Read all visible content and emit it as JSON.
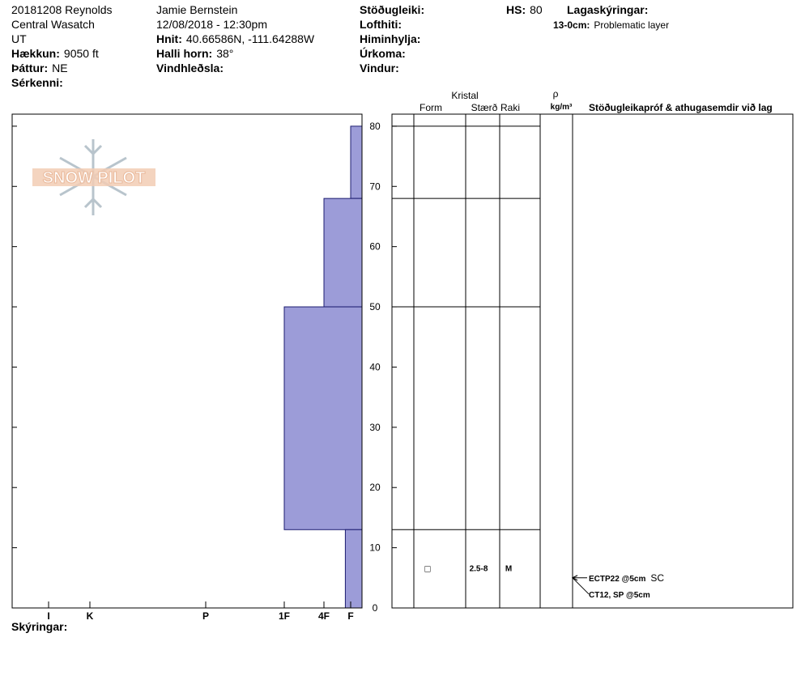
{
  "header": {
    "col1": [
      {
        "value": "20181208 Reynolds"
      },
      {
        "value": "Central Wasatch"
      },
      {
        "value": "UT"
      },
      {
        "label": "Hækkun:",
        "value": "9050 ft"
      },
      {
        "label": "Þáttur:",
        "value": "NE"
      },
      {
        "label": "Sérkenni:"
      }
    ],
    "col2": [
      {
        "value": "Jamie Bernstein"
      },
      {
        "value": "12/08/2018 - 12:30pm"
      },
      {
        "label": "Hnit:",
        "value": "40.66586N, -111.64288W"
      },
      {
        "label": "Halli horn:",
        "value": "38°"
      },
      {
        "label": "Vindhleðsla:"
      }
    ],
    "col3": [
      {
        "label": "Stöðugleiki:"
      },
      {
        "label": "Lofthiti:"
      },
      {
        "label": "Himinhylja:"
      },
      {
        "label": "Úrkoma:"
      },
      {
        "label": "Vindur:"
      }
    ],
    "hs": {
      "label": "HS:",
      "value": 80
    },
    "notes_title": "Lagaskýringar:",
    "notes": [
      {
        "label": "13-0cm:",
        "value": "Problematic layer"
      }
    ],
    "remarks": "Skýringar:",
    "logo": "SNOW PILOT"
  },
  "table_headers": {
    "crystal": "Kristal",
    "form": "Form",
    "size": "Stærð",
    "moisture": "Raki",
    "density": "ρ",
    "density_unit": "kg/m³",
    "tests": "Stöðugleikapróf & athugasemdir við lag"
  },
  "chart_data": {
    "type": "snow-profile",
    "ylim": [
      0,
      82
    ],
    "yticks": [
      0,
      10,
      20,
      30,
      40,
      50,
      60,
      70,
      80
    ],
    "xlim": [
      0,
      7
    ],
    "xticks": [
      {
        "value": 1,
        "label": "F"
      },
      {
        "value": 2,
        "label": "4F"
      },
      {
        "value": 3,
        "label": "1F"
      },
      {
        "value": 4,
        "label": "P"
      },
      {
        "value": 5,
        "label": "K"
      },
      {
        "value": 6,
        "label": "I"
      }
    ],
    "color": "#9c9cd8",
    "layers": [
      {
        "top": 80,
        "bottom": 68,
        "hardness": 1
      },
      {
        "top": 68,
        "bottom": 50,
        "hardness": 2
      },
      {
        "top": 50,
        "bottom": 13,
        "hardness": 3
      },
      {
        "top": 13,
        "bottom": 0,
        "hardness": 1.2,
        "form": "□",
        "size": "2.5-8",
        "moisture": "M"
      }
    ],
    "tests": [
      {
        "label": "ECTP22 @5cm",
        "shear": "SC",
        "depth": 5
      },
      {
        "label": "CT12, SP @5cm",
        "depth": 5
      }
    ]
  }
}
